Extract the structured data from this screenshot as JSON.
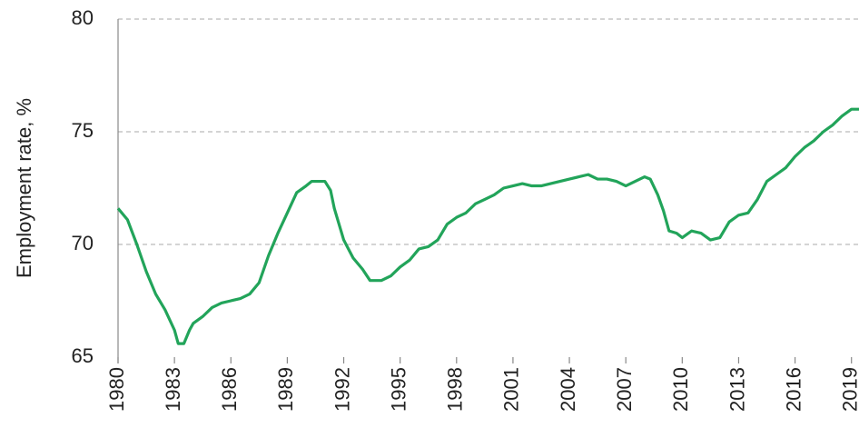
{
  "chart_data": {
    "type": "line",
    "y_label": "Employment rate, %",
    "x": [
      1980,
      1980.5,
      1981,
      1981.5,
      1982,
      1982.5,
      1983,
      1983.2,
      1983.5,
      1983.8,
      1984,
      1984.5,
      1985,
      1985.5,
      1986,
      1986.5,
      1987,
      1987.5,
      1988,
      1988.5,
      1989,
      1989.5,
      1990,
      1990.3,
      1991,
      1991.3,
      1991.5,
      1992,
      1992.5,
      1993,
      1993.4,
      1994,
      1994.5,
      1995,
      1995.5,
      1996,
      1996.5,
      1997,
      1997.5,
      1998,
      1998.5,
      1999,
      1999.5,
      2000,
      2000.5,
      2001,
      2001.5,
      2002,
      2002.5,
      2003,
      2003.5,
      2004,
      2004.5,
      2005,
      2005.5,
      2006,
      2006.5,
      2007,
      2007.5,
      2008,
      2008.3,
      2008.7,
      2009,
      2009.3,
      2009.7,
      2010,
      2010.5,
      2011,
      2011.5,
      2012,
      2012.5,
      2013,
      2013.5,
      2014,
      2014.5,
      2015,
      2015.5,
      2016,
      2016.5,
      2017,
      2017.5,
      2018,
      2018.5,
      2019,
      2019.4
    ],
    "series": [
      {
        "name": "Employment rate",
        "color": "#22a45a",
        "values": [
          71.6,
          71.1,
          70.0,
          68.8,
          67.8,
          67.1,
          66.2,
          65.6,
          65.6,
          66.2,
          66.5,
          66.8,
          67.2,
          67.4,
          67.5,
          67.6,
          67.8,
          68.3,
          69.5,
          70.5,
          71.4,
          72.3,
          72.6,
          72.8,
          72.8,
          72.4,
          71.6,
          70.2,
          69.4,
          68.9,
          68.4,
          68.4,
          68.6,
          69.0,
          69.3,
          69.8,
          69.9,
          70.2,
          70.9,
          71.2,
          71.4,
          71.8,
          72.0,
          72.2,
          72.5,
          72.6,
          72.7,
          72.6,
          72.6,
          72.7,
          72.8,
          72.9,
          73.0,
          73.1,
          72.9,
          72.9,
          72.8,
          72.6,
          72.8,
          73.0,
          72.9,
          72.2,
          71.5,
          70.6,
          70.5,
          70.3,
          70.6,
          70.5,
          70.2,
          70.3,
          71.0,
          71.3,
          71.4,
          72.0,
          72.8,
          73.1,
          73.4,
          73.9,
          74.3,
          74.6,
          75.0,
          75.3,
          75.7,
          76.0,
          76.0
        ]
      }
    ],
    "xlim": [
      1980,
      2019.4
    ],
    "xticks": [
      1980,
      1983,
      1986,
      1989,
      1992,
      1995,
      1998,
      2001,
      2004,
      2007,
      2010,
      2013,
      2016,
      2019
    ],
    "ylim": [
      65,
      80
    ],
    "yticks": [
      65,
      70,
      75,
      80
    ],
    "grid": true
  }
}
